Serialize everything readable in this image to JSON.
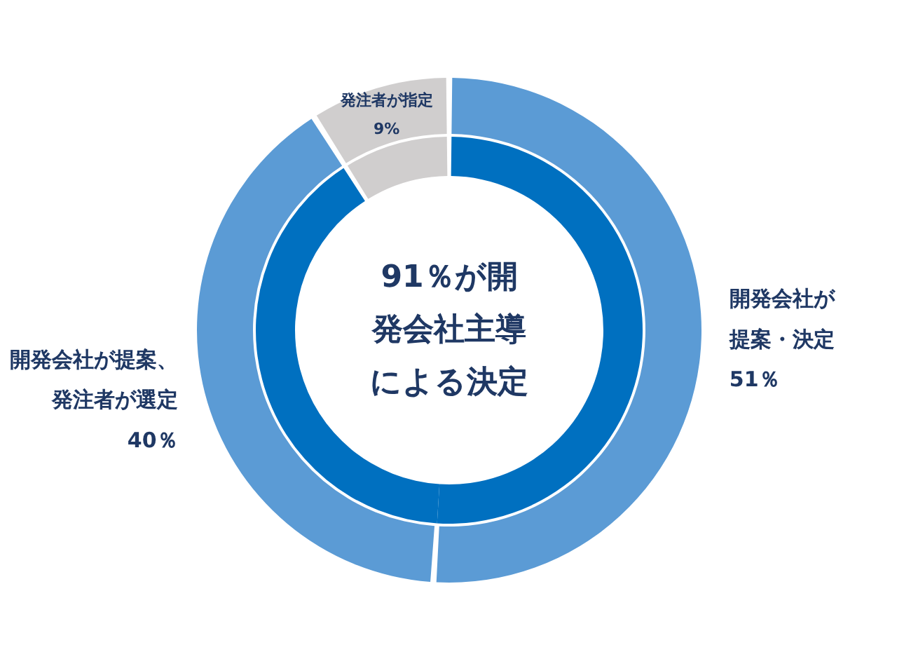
{
  "chart_data": {
    "type": "donut",
    "categories": [
      "開発会社が提案・決定",
      "開発会社が提案、発注者が選定",
      "発注者が指定"
    ],
    "series": [
      {
        "values": [
          51,
          40,
          9
        ],
        "colors": [
          "#0070c0",
          "#0070c0",
          "#d0cece"
        ]
      },
      {
        "values": [
          51,
          40,
          9
        ],
        "colors": [
          "#5b9bd5",
          "#5b9bd5",
          "#d0cece"
        ],
        "value_labels": [
          "51％",
          "40％",
          "9%"
        ]
      }
    ],
    "annotations": [
      "91％が開発会社主導による決定"
    ]
  }
}
